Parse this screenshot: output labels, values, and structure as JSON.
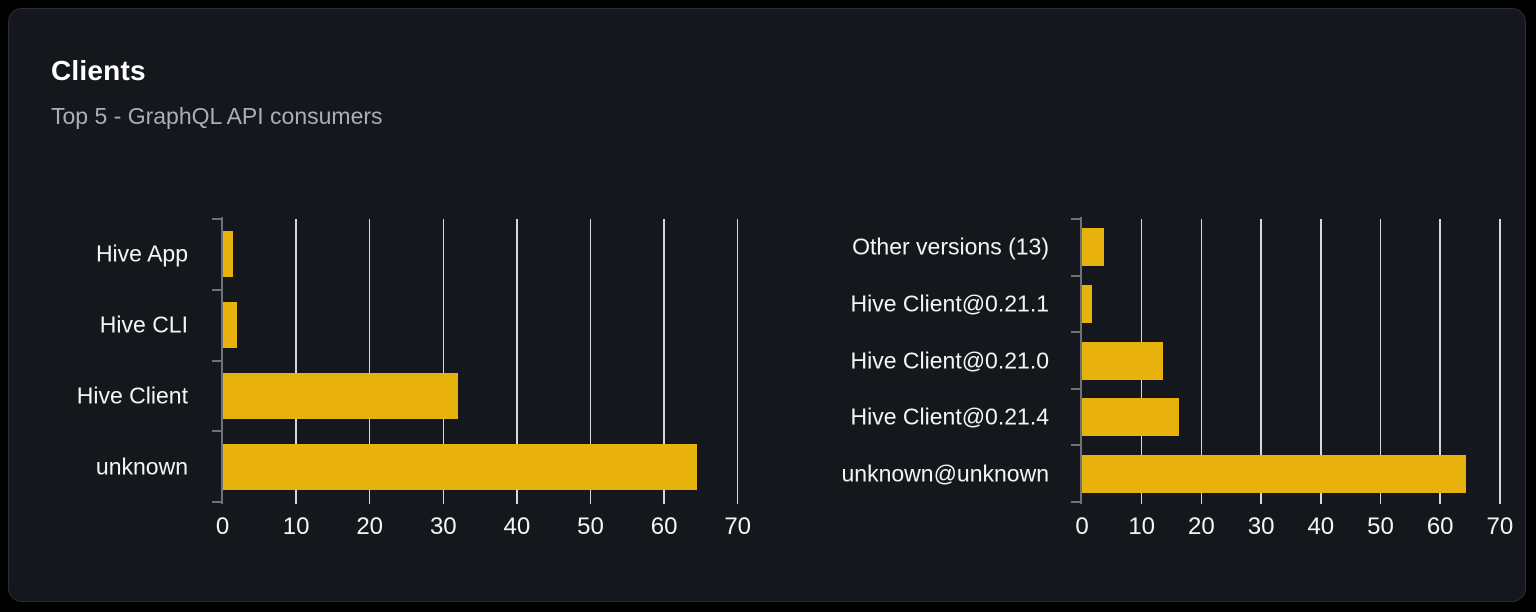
{
  "card": {
    "title": "Clients",
    "subtitle": "Top 5 - GraphQL API consumers"
  },
  "colors": {
    "page_bg": "#000000",
    "card_bg": "#14171c",
    "card_border": "#2b2e34",
    "bar": "#e9b10e",
    "gridline": "#e6eaf0",
    "axis": "#6e7278",
    "label_text": "#f3f4f6",
    "subtitle_text": "#abaeb4"
  },
  "chart_data": [
    {
      "type": "bar",
      "orientation": "horizontal",
      "title": "",
      "xlabel": "",
      "ylabel": "",
      "categories": [
        "Hive App",
        "Hive CLI",
        "Hive Client",
        "unknown"
      ],
      "values": [
        1.4,
        2,
        32,
        64.5
      ],
      "xlim": [
        0,
        70
      ],
      "xticks": [
        0,
        10,
        20,
        30,
        40,
        50,
        60,
        70
      ],
      "grid": true,
      "legend": false
    },
    {
      "type": "bar",
      "orientation": "horizontal",
      "title": "",
      "xlabel": "",
      "ylabel": "",
      "categories": [
        "Other versions (13)",
        "Hive Client@0.21.1",
        "Hive Client@0.21.0",
        "Hive Client@0.21.4",
        "unknown@unknown"
      ],
      "values": [
        3.7,
        1.6,
        13.5,
        16.2,
        64.3
      ],
      "xlim": [
        0,
        70
      ],
      "xticks": [
        0,
        10,
        20,
        30,
        40,
        50,
        60,
        70
      ],
      "grid": true,
      "legend": false
    }
  ]
}
